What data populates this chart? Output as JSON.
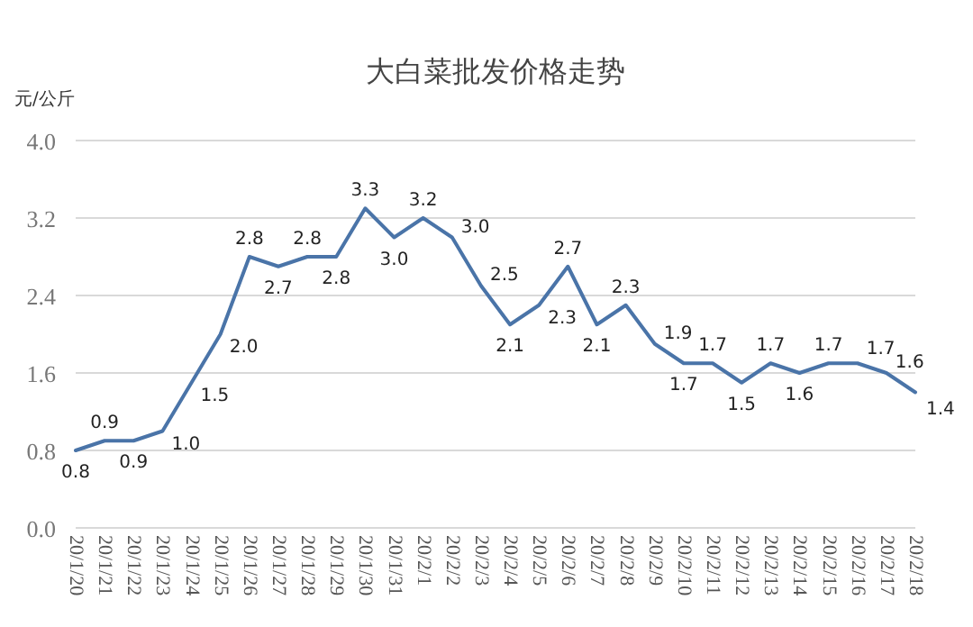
{
  "chart_data": {
    "type": "line",
    "title": "大白菜批发价格走势",
    "ylabel": "元/公斤",
    "categories": [
      "20/1/20",
      "20/1/21",
      "20/1/22",
      "20/1/23",
      "20/1/24",
      "20/1/25",
      "20/1/26",
      "20/1/27",
      "20/1/28",
      "20/1/29",
      "20/1/30",
      "20/1/31",
      "20/2/1",
      "20/2/2",
      "20/2/3",
      "20/2/4",
      "20/2/5",
      "20/2/6",
      "20/2/7",
      "20/2/8",
      "20/2/9",
      "20/2/10",
      "20/2/11",
      "20/2/12",
      "20/2/13",
      "20/2/14",
      "20/2/15",
      "20/2/16",
      "20/2/17",
      "20/2/18"
    ],
    "series": [
      {
        "color": "#4a74a8",
        "values": [
          0.8,
          0.9,
          0.9,
          1.0,
          1.5,
          2.0,
          2.8,
          2.7,
          2.8,
          2.8,
          3.3,
          3.0,
          3.2,
          3.0,
          2.5,
          2.1,
          2.3,
          2.7,
          2.1,
          2.3,
          1.9,
          1.7,
          1.7,
          1.5,
          1.7,
          1.6,
          1.7,
          1.7,
          1.6,
          1.4
        ],
        "value_labels": [
          "0.8",
          "0.9",
          "0.9",
          "1.0",
          "1.5",
          "2.0",
          "2.8",
          "2.7",
          "2.8",
          "2.8",
          "3.3",
          "3.0",
          "3.2",
          "3.0",
          "2.5",
          "2.1",
          "2.3",
          "2.7",
          "2.1",
          "2.3",
          "1.9",
          "1.7",
          "1.7",
          "1.5",
          "1.7",
          "1.6",
          "1.7",
          "1.7",
          "1.6",
          "1.4"
        ]
      }
    ],
    "ylim": [
      0,
      4
    ],
    "yticks": [
      {
        "value": 0,
        "label": "0.0"
      },
      0.8,
      1.6,
      2.4,
      3.2,
      {
        "value": 4,
        "label": "4.0"
      }
    ],
    "grid": "y",
    "marker": "none",
    "line_style": "solid"
  }
}
